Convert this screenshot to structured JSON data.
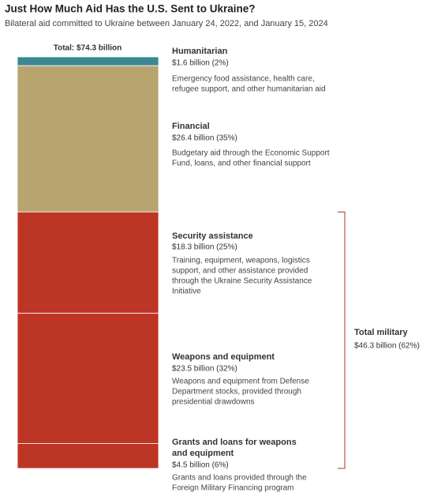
{
  "chart_data": {
    "type": "stacked-bar",
    "title": "Just How Much Aid Has the U.S. Sent to Ukraine?",
    "subtitle": "Bilateral aid committed to Ukraine between January 24, 2022, and January 15, 2024",
    "total": {
      "value": 74.3,
      "label": "Total: $74.3 billion"
    },
    "series": [
      {
        "name": "Humanitarian",
        "color": "#3b8893",
        "label_color": "#3a7f8a",
        "values": [
          1.6
        ],
        "value_labels": [
          "$1.6 billion (2%)"
        ],
        "description": [
          "Emergency food assistance, health care,",
          "refugee support, and other humanitarian aid"
        ]
      },
      {
        "name": "Financial",
        "color": "#b8a46f",
        "label_color": "#a48f57",
        "values": [
          26.4
        ],
        "value_labels": [
          "$26.4 billion (35%)"
        ],
        "description": [
          "Budgetary aid through the Economic Support",
          "Fund, loans, and other financial support"
        ]
      },
      {
        "name": "Security assistance",
        "color": "#bd3524",
        "label_color": "#b3301f",
        "values": [
          18.3
        ],
        "value_labels": [
          "$18.3 billion (25%)"
        ],
        "description": [
          "Training, equipment, weapons, logistics",
          "support, and other assistance provided",
          "through the Ukraine Security Assistance",
          "Initiative"
        ]
      },
      {
        "name": "Weapons and equipment",
        "color": "#bd3524",
        "label_color": "#b3301f",
        "values": [
          23.5
        ],
        "value_labels": [
          "$23.5 billion (32%)"
        ],
        "description": [
          "Weapons and equipment from Defense",
          "Department stocks, provided through",
          "presidential drawdowns"
        ]
      },
      {
        "name": "Grants and loans for weapons and equipment",
        "color": "#bd3524",
        "label_color": "#b3301f",
        "values": [
          4.5
        ],
        "value_labels": [
          "$4.5 billion (6%)"
        ],
        "description": [
          "Grants and loans provided through the",
          "Foreign Military Financing program"
        ]
      }
    ],
    "group": {
      "name": "Total military",
      "color": "#b3301f",
      "values": [
        46.3
      ],
      "value_labels": [
        "$46.3 billion (62%)"
      ]
    }
  }
}
